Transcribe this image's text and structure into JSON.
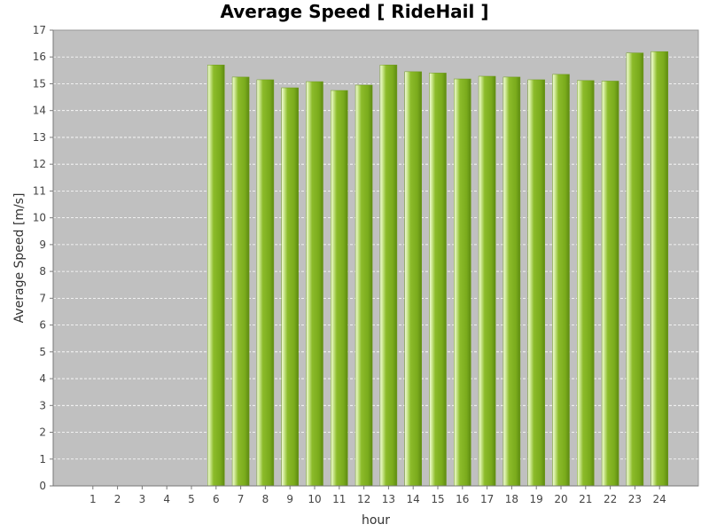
{
  "chart_data": {
    "type": "bar",
    "title": "Average Speed [ RideHail ]",
    "xlabel": "hour",
    "ylabel": "Average Speed [m/s]",
    "categories": [
      "1",
      "2",
      "3",
      "4",
      "5",
      "6",
      "7",
      "8",
      "9",
      "10",
      "11",
      "12",
      "13",
      "14",
      "15",
      "16",
      "17",
      "18",
      "19",
      "20",
      "21",
      "22",
      "23",
      "24"
    ],
    "values": [
      0,
      0,
      0,
      0,
      0,
      15.7,
      15.25,
      15.15,
      14.85,
      15.08,
      14.75,
      14.95,
      15.7,
      15.45,
      15.4,
      15.18,
      15.28,
      15.25,
      15.15,
      15.35,
      15.12,
      15.1,
      16.15,
      16.2
    ],
    "ylim": [
      0,
      17
    ],
    "yticks": [
      "0",
      "1",
      "2",
      "3",
      "4",
      "5",
      "6",
      "7",
      "8",
      "9",
      "10",
      "11",
      "12",
      "13",
      "14",
      "15",
      "16",
      "17"
    ],
    "grid": true,
    "legend": "none",
    "colors": {
      "plot_background": "#c0c0c0",
      "bar_main": "#8cbb2a",
      "bar_highlight": "#d6eea0",
      "bar_dark": "#5e8a12",
      "grid": "#ffffff"
    }
  }
}
